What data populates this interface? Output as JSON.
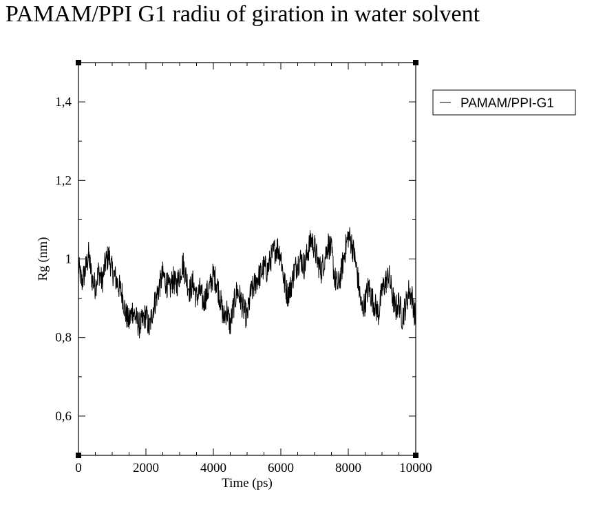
{
  "chart_data": {
    "type": "line",
    "title": "PAMAM/PPI G1 radiu of giration in water solvent",
    "xlabel": "Time (ps)",
    "ylabel": "Rg (nm)",
    "xlim": [
      0,
      10000
    ],
    "ylim": [
      0.5,
      1.5
    ],
    "x_ticks": [
      0,
      2000,
      4000,
      6000,
      8000,
      10000
    ],
    "x_tick_labels": [
      "0",
      "2000",
      "4000",
      "6000",
      "8000",
      "10000"
    ],
    "y_ticks": [
      0.6,
      0.8,
      1.0,
      1.2,
      1.4
    ],
    "y_tick_labels": [
      "0,6",
      "0,8",
      "1",
      "1,2",
      "1,4"
    ],
    "grid": false,
    "legend_position": "top-right, outside",
    "series": [
      {
        "name": "PAMAM/PPI-G1",
        "color": "#000000",
        "x": [
          0,
          100,
          200,
          300,
          400,
          500,
          600,
          700,
          800,
          900,
          1000,
          1100,
          1200,
          1300,
          1400,
          1500,
          1600,
          1700,
          1800,
          1900,
          2000,
          2100,
          2200,
          2300,
          2400,
          2500,
          2600,
          2700,
          2800,
          2900,
          3000,
          3100,
          3200,
          3300,
          3400,
          3500,
          3600,
          3700,
          3800,
          3900,
          4000,
          4100,
          4200,
          4300,
          4400,
          4500,
          4600,
          4700,
          4800,
          4900,
          5000,
          5100,
          5200,
          5300,
          5400,
          5500,
          5600,
          5700,
          5800,
          5900,
          6000,
          6100,
          6200,
          6300,
          6400,
          6500,
          6600,
          6700,
          6800,
          6900,
          7000,
          7100,
          7200,
          7300,
          7400,
          7500,
          7600,
          7700,
          7800,
          7900,
          8000,
          8100,
          8200,
          8300,
          8400,
          8500,
          8600,
          8700,
          8800,
          8900,
          9000,
          9100,
          9200,
          9300,
          9400,
          9500,
          9600,
          9700,
          9800,
          9900,
          10000
        ],
        "values": [
          0.98,
          0.94,
          0.97,
          1.01,
          0.95,
          0.93,
          0.97,
          0.94,
          0.99,
          1.01,
          0.97,
          0.95,
          0.93,
          0.91,
          0.86,
          0.84,
          0.87,
          0.85,
          0.83,
          0.84,
          0.86,
          0.82,
          0.87,
          0.9,
          0.93,
          0.96,
          0.94,
          0.92,
          0.95,
          0.93,
          0.96,
          0.99,
          0.95,
          0.92,
          0.94,
          0.9,
          0.92,
          0.89,
          0.91,
          0.93,
          0.96,
          0.94,
          0.9,
          0.85,
          0.87,
          0.83,
          0.88,
          0.92,
          0.9,
          0.87,
          0.85,
          0.91,
          0.93,
          0.95,
          0.96,
          0.98,
          0.97,
          1.0,
          1.02,
          1.03,
          1.01,
          0.94,
          0.91,
          0.93,
          0.97,
          0.99,
          1.0,
          0.98,
          1.02,
          1.05,
          1.03,
          0.99,
          0.97,
          1.0,
          1.04,
          1.02,
          0.95,
          0.93,
          0.97,
          1.02,
          1.06,
          1.04,
          1.0,
          0.94,
          0.87,
          0.89,
          0.93,
          0.9,
          0.88,
          0.86,
          0.92,
          0.94,
          0.96,
          0.91,
          0.87,
          0.89,
          0.85,
          0.88,
          0.92,
          0.9,
          0.84
        ]
      }
    ]
  }
}
